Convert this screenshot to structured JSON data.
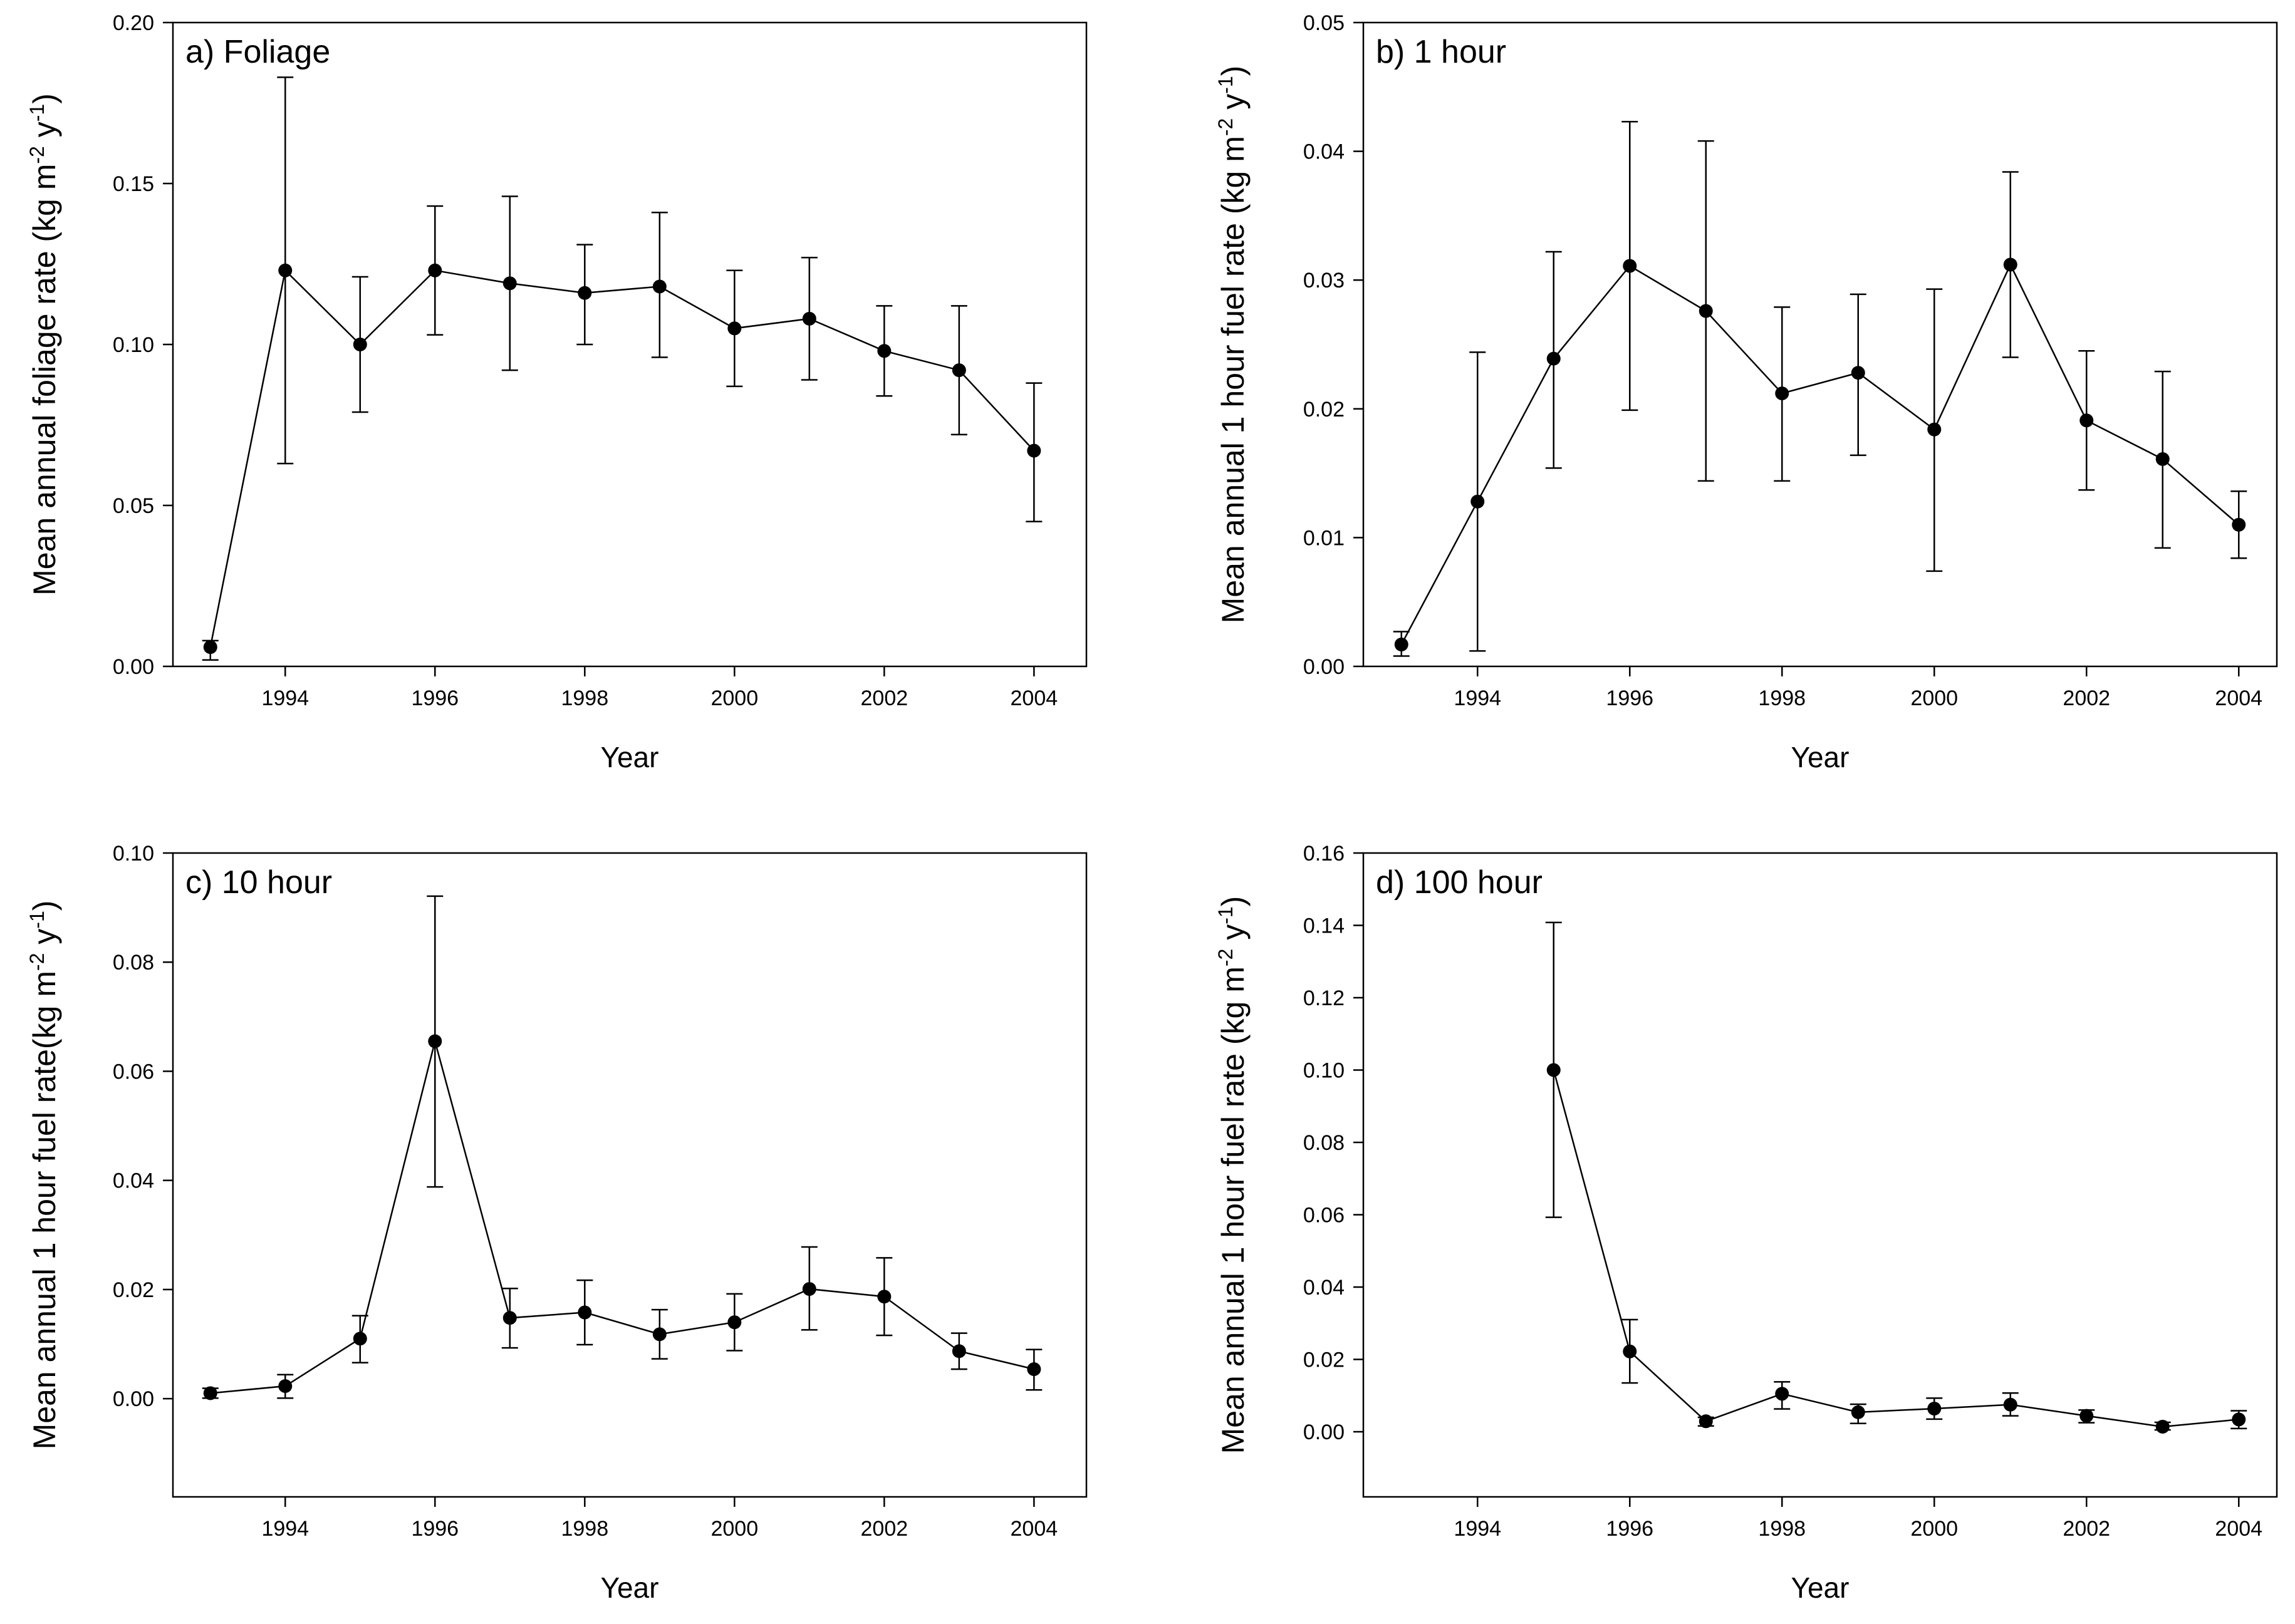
{
  "chart_data": [
    {
      "id": "a",
      "type": "line",
      "panel_label": "a) Foliage",
      "xlabel": "Year",
      "ylabel": {
        "prefix": "Mean annual foliage rate (kg m",
        "exp1": "-2",
        "mid": " y",
        "exp2": "-1",
        "suffix": ")"
      },
      "xlim": [
        1992.5,
        2004.7
      ],
      "ylim": [
        0,
        0.2
      ],
      "xticks": [
        1994,
        1996,
        1998,
        2000,
        2002,
        2004
      ],
      "xtick_labels": [
        "1994",
        "1996",
        "1998",
        "2000",
        "2002",
        "2004"
      ],
      "yticks": [
        0,
        0.05,
        0.1,
        0.15,
        0.2
      ],
      "ytick_labels": [
        "0.00",
        "0.05",
        "0.10",
        "0.15",
        "0.20"
      ],
      "x": [
        1993,
        1994,
        1995,
        1996,
        1997,
        1998,
        1999,
        2000,
        2001,
        2002,
        2003,
        2004
      ],
      "values": [
        0.006,
        0.123,
        0.1,
        0.123,
        0.119,
        0.116,
        0.118,
        0.105,
        0.108,
        0.098,
        0.092,
        0.067
      ],
      "err_low": [
        0.002,
        0.063,
        0.079,
        0.103,
        0.092,
        0.1,
        0.096,
        0.087,
        0.089,
        0.084,
        0.072,
        0.045
      ],
      "err_high": [
        0.008,
        0.183,
        0.121,
        0.143,
        0.146,
        0.131,
        0.141,
        0.123,
        0.127,
        0.112,
        0.112,
        0.088
      ]
    },
    {
      "id": "b",
      "type": "line",
      "panel_label": "b) 1 hour",
      "xlabel": "Year",
      "ylabel": {
        "prefix": "Mean annual 1 hour fuel rate (kg m",
        "exp1": "-2",
        "mid": " y",
        "exp2": "-1",
        "suffix": ")"
      },
      "xlim": [
        1992.5,
        2004.5
      ],
      "ylim": [
        0,
        0.05
      ],
      "xticks": [
        1994,
        1996,
        1998,
        2000,
        2002,
        2004
      ],
      "xtick_labels": [
        "1994",
        "1996",
        "1998",
        "2000",
        "2002",
        "2004"
      ],
      "yticks": [
        0,
        0.01,
        0.02,
        0.03,
        0.04,
        0.05
      ],
      "ytick_labels": [
        "0.00",
        "0.01",
        "0.02",
        "0.03",
        "0.04",
        "0.05"
      ],
      "x": [
        1993,
        1994,
        1995,
        1996,
        1997,
        1998,
        1999,
        2000,
        2001,
        2002,
        2003,
        2004
      ],
      "values": [
        0.0017,
        0.0128,
        0.0239,
        0.0311,
        0.0276,
        0.0212,
        0.0228,
        0.0184,
        0.0312,
        0.0191,
        0.0161,
        0.011
      ],
      "err_low": [
        0.0008,
        0.0012,
        0.0154,
        0.0199,
        0.0144,
        0.0144,
        0.0164,
        0.0074,
        0.024,
        0.0137,
        0.0092,
        0.0084
      ],
      "err_high": [
        0.0027,
        0.0244,
        0.0322,
        0.0423,
        0.0408,
        0.0279,
        0.0289,
        0.0293,
        0.0384,
        0.0245,
        0.0229,
        0.0136
      ]
    },
    {
      "id": "c",
      "type": "line",
      "panel_label": "c) 10 hour",
      "xlabel": "Year",
      "ylabel": {
        "prefix": "Mean annual 1 hour fuel rate(kg m",
        "exp1": "-2",
        "mid": " y",
        "exp2": "-1",
        "suffix": ")"
      },
      "xlim": [
        1992.5,
        2004.7
      ],
      "ylim": [
        -0.018,
        0.1
      ],
      "xticks": [
        1994,
        1996,
        1998,
        2000,
        2002,
        2004
      ],
      "xtick_labels": [
        "1994",
        "1996",
        "1998",
        "2000",
        "2002",
        "2004"
      ],
      "yticks": [
        0,
        0.02,
        0.04,
        0.06,
        0.08,
        0.1
      ],
      "ytick_labels": [
        "0.00",
        "0.02",
        "0.04",
        "0.06",
        "0.08",
        "0.10"
      ],
      "x": [
        1993,
        1994,
        1995,
        1996,
        1997,
        1998,
        1999,
        2000,
        2001,
        2002,
        2003,
        2004
      ],
      "values": [
        0.001,
        0.0023,
        0.011,
        0.0655,
        0.0148,
        0.0158,
        0.0118,
        0.014,
        0.0201,
        0.0187,
        0.0087,
        0.0054
      ],
      "err_low": [
        0.0001,
        0.0001,
        0.0066,
        0.0388,
        0.0093,
        0.0099,
        0.0073,
        0.0088,
        0.0126,
        0.0116,
        0.0054,
        0.0016
      ],
      "err_high": [
        0.0019,
        0.0044,
        0.0152,
        0.0921,
        0.0202,
        0.0217,
        0.0163,
        0.0192,
        0.0278,
        0.0258,
        0.012,
        0.009
      ]
    },
    {
      "id": "d",
      "type": "line",
      "panel_label": "d) 100 hour",
      "xlabel": "Year",
      "ylabel": {
        "prefix": "Mean annual 1 hour fuel rate (kg m",
        "exp1": "-2",
        "mid": " y",
        "exp2": "-1",
        "suffix": ")"
      },
      "xlim": [
        1992.5,
        2004.5
      ],
      "ylim": [
        -0.018,
        0.16
      ],
      "xticks": [
        1994,
        1996,
        1998,
        2000,
        2002,
        2004
      ],
      "xtick_labels": [
        "1994",
        "1996",
        "1998",
        "2000",
        "2002",
        "2004"
      ],
      "yticks": [
        0,
        0.02,
        0.04,
        0.06,
        0.08,
        0.1,
        0.12,
        0.14,
        0.16
      ],
      "ytick_labels": [
        "0.00",
        "0.02",
        "0.04",
        "0.06",
        "0.08",
        "0.10",
        "0.12",
        "0.14",
        "0.16"
      ],
      "x": [
        1995,
        1996,
        1997,
        1998,
        1999,
        2000,
        2001,
        2002,
        2003,
        2004
      ],
      "values": [
        0.1,
        0.0222,
        0.0029,
        0.0105,
        0.0054,
        0.0064,
        0.0075,
        0.0044,
        0.0014,
        0.0034
      ],
      "err_low": [
        0.0593,
        0.0135,
        0.0016,
        0.0063,
        0.0023,
        0.0035,
        0.0044,
        0.0025,
        0.0005,
        0.0009
      ],
      "err_high": [
        0.1408,
        0.031,
        0.004,
        0.0138,
        0.0076,
        0.0093,
        0.0107,
        0.006,
        0.0026,
        0.0058
      ]
    }
  ]
}
